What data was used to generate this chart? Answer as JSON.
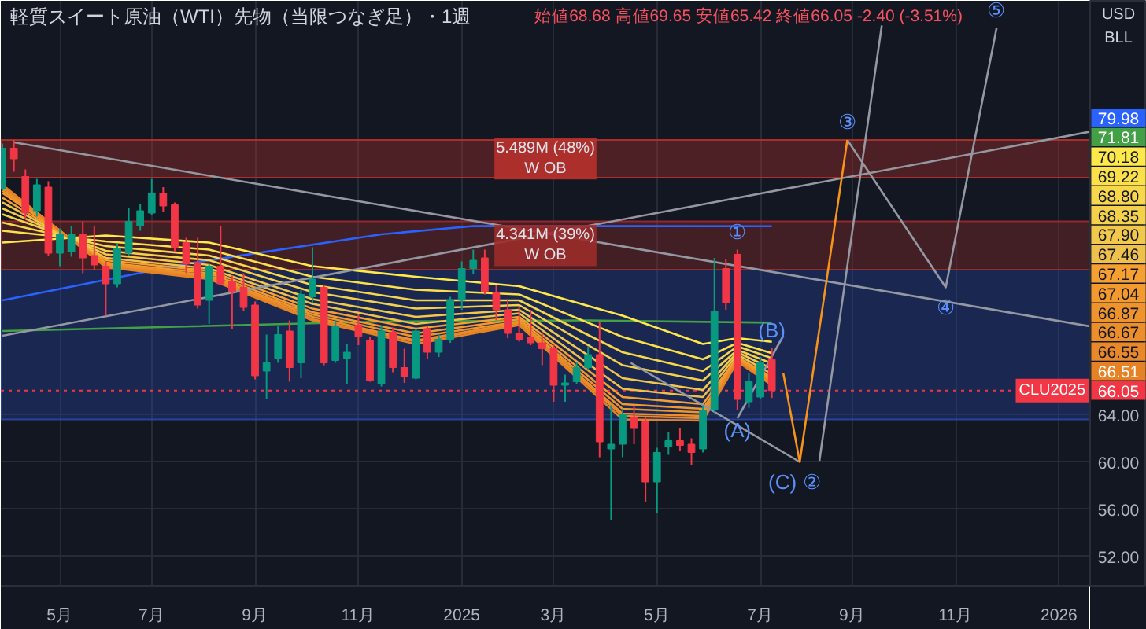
{
  "chart_data": {
    "type": "candlestick",
    "title": "軽質スイート原油（WTI）先物（当限つなぎ足）・1週",
    "subtitle": "始値68.68 高値69.65 安値65.42 終値66.05 -2.40 (-3.51%)",
    "x": [
      "2024-04-01",
      "2024-04-08",
      "2024-04-15",
      "2024-04-22",
      "2024-04-29",
      "2024-05-06",
      "2024-05-13",
      "2024-05-20",
      "2024-05-27",
      "2024-06-03",
      "2024-06-10",
      "2024-06-17",
      "2024-06-24",
      "2024-07-01",
      "2024-07-08",
      "2024-07-15",
      "2024-07-22",
      "2024-07-29",
      "2024-08-05",
      "2024-08-12",
      "2024-08-19",
      "2024-08-26",
      "2024-09-02",
      "2024-09-09",
      "2024-09-16",
      "2024-09-23",
      "2024-09-30",
      "2024-10-07",
      "2024-10-14",
      "2024-10-21",
      "2024-10-28",
      "2024-11-04",
      "2024-11-11",
      "2024-11-18",
      "2024-11-25",
      "2024-12-02",
      "2024-12-09",
      "2024-12-16",
      "2024-12-23",
      "2024-12-30",
      "2025-01-06",
      "2025-01-13",
      "2025-01-20",
      "2025-01-27",
      "2025-02-03",
      "2025-02-10",
      "2025-02-17",
      "2025-02-24",
      "2025-03-03",
      "2025-03-10",
      "2025-03-17",
      "2025-03-24",
      "2025-03-31",
      "2025-04-07",
      "2025-04-14",
      "2025-04-21",
      "2025-04-28",
      "2025-05-05",
      "2025-05-12",
      "2025-05-19",
      "2025-05-26",
      "2025-06-02",
      "2025-06-09",
      "2025-06-16",
      "2025-06-23",
      "2025-06-30",
      "2025-07-07",
      "2025-07-14"
    ],
    "ohlc": [
      [
        83.2,
        87.0,
        83.0,
        86.6
      ],
      [
        86.6,
        87.3,
        84.6,
        85.7
      ],
      [
        84.2,
        84.8,
        80.6,
        81.1
      ],
      [
        81.3,
        84.0,
        80.8,
        83.5
      ],
      [
        83.3,
        83.8,
        77.5,
        77.7
      ],
      [
        77.7,
        79.8,
        76.6,
        79.3
      ],
      [
        77.8,
        80.0,
        77.4,
        79.3
      ],
      [
        79.3,
        80.4,
        76.0,
        77.3
      ],
      [
        77.5,
        80.0,
        76.3,
        76.7
      ],
      [
        76.6,
        77.0,
        72.4,
        75.1
      ],
      [
        75.1,
        78.5,
        74.8,
        78.1
      ],
      [
        77.7,
        81.5,
        77.5,
        80.4
      ],
      [
        80.0,
        81.9,
        79.6,
        81.3
      ],
      [
        81.1,
        84.0,
        80.9,
        82.8
      ],
      [
        82.8,
        83.3,
        81.2,
        81.7
      ],
      [
        81.8,
        82.0,
        77.8,
        78.2
      ],
      [
        78.6,
        79.0,
        76.0,
        76.8
      ],
      [
        76.9,
        79.0,
        73.0,
        73.3
      ],
      [
        73.7,
        76.8,
        71.7,
        76.6
      ],
      [
        76.6,
        80.0,
        75.0,
        75.1
      ],
      [
        75.3,
        75.8,
        71.3,
        74.4
      ],
      [
        74.8,
        76.0,
        72.8,
        73.1
      ],
      [
        73.3,
        73.6,
        67.0,
        67.3
      ],
      [
        67.7,
        70.8,
        65.3,
        68.4
      ],
      [
        68.8,
        71.5,
        68.4,
        70.8
      ],
      [
        71.1,
        72.0,
        66.8,
        68.0
      ],
      [
        68.4,
        74.6,
        67.1,
        74.2
      ],
      [
        74.0,
        78.2,
        73.5,
        75.5
      ],
      [
        74.8,
        75.0,
        68.2,
        68.4
      ],
      [
        68.6,
        72.0,
        68.4,
        71.5
      ],
      [
        68.8,
        70.0,
        66.6,
        69.3
      ],
      [
        71.6,
        72.5,
        69.9,
        70.6
      ],
      [
        70.3,
        70.6,
        66.8,
        66.9
      ],
      [
        66.6,
        71.5,
        66.4,
        71.1
      ],
      [
        71.0,
        71.4,
        67.6,
        68.0
      ],
      [
        68.0,
        69.6,
        66.7,
        67.2
      ],
      [
        67.1,
        71.3,
        67.0,
        71.1
      ],
      [
        71.3,
        71.6,
        68.7,
        69.3
      ],
      [
        69.3,
        70.8,
        68.9,
        70.4
      ],
      [
        70.4,
        74.0,
        70.1,
        73.7
      ],
      [
        73.7,
        77.0,
        72.9,
        76.4
      ],
      [
        76.4,
        78.0,
        75.9,
        77.1
      ],
      [
        77.3,
        78.0,
        74.2,
        74.4
      ],
      [
        74.4,
        75.0,
        72.0,
        72.9
      ],
      [
        72.9,
        73.8,
        70.5,
        70.9
      ],
      [
        70.9,
        73.2,
        70.2,
        70.4
      ],
      [
        70.6,
        72.9,
        69.9,
        70.1
      ],
      [
        70.1,
        71.0,
        68.2,
        69.6
      ],
      [
        69.6,
        70.0,
        65.1,
        66.5
      ],
      [
        66.5,
        67.4,
        65.1,
        66.7
      ],
      [
        66.8,
        68.5,
        66.6,
        68.0
      ],
      [
        68.0,
        69.8,
        67.8,
        69.1
      ],
      [
        69.1,
        71.9,
        60.4,
        61.7
      ],
      [
        61.1,
        64.8,
        55.1,
        61.5
      ],
      [
        61.5,
        64.5,
        60.4,
        64.0
      ],
      [
        63.8,
        64.8,
        61.5,
        62.9
      ],
      [
        63.4,
        63.8,
        56.6,
        58.3
      ],
      [
        58.3,
        61.2,
        55.7,
        60.8
      ],
      [
        61.3,
        62.5,
        60.6,
        61.8
      ],
      [
        61.8,
        62.9,
        60.9,
        61.4
      ],
      [
        61.5,
        62.0,
        59.7,
        60.8
      ],
      [
        61.1,
        64.8,
        60.8,
        64.4
      ],
      [
        64.4,
        77.3,
        64.2,
        72.8
      ],
      [
        76.4,
        77.2,
        72.9,
        73.5
      ],
      [
        77.6,
        78.0,
        64.4,
        65.3
      ],
      [
        65.1,
        67.5,
        64.6,
        66.8
      ],
      [
        65.5,
        68.9,
        65.3,
        68.45
      ],
      [
        68.68,
        69.65,
        65.42,
        66.05
      ]
    ],
    "colors": [
      "#089981",
      "#f23645",
      "#f23645",
      "#089981",
      "#f23645",
      "#089981",
      "#089981",
      "#f23645",
      "#f23645",
      "#f23645",
      "#089981",
      "#089981",
      "#089981",
      "#089981",
      "#f23645",
      "#f23645",
      "#f23645",
      "#f23645",
      "#089981",
      "#f23645",
      "#f23645",
      "#f23645",
      "#f23645",
      "#089981",
      "#089981",
      "#f23645",
      "#089981",
      "#089981",
      "#f23645",
      "#089981",
      "#089981",
      "#f23645",
      "#f23645",
      "#089981",
      "#f23645",
      "#f23645",
      "#089981",
      "#f23645",
      "#089981",
      "#089981",
      "#089981",
      "#089981",
      "#f23645",
      "#f23645",
      "#f23645",
      "#f23645",
      "#f23645",
      "#f23645",
      "#f23645",
      "#089981",
      "#089981",
      "#089981",
      "#f23645",
      "#089981",
      "#089981",
      "#f23645",
      "#f23645",
      "#089981",
      "#089981",
      "#f23645",
      "#f23645",
      "#089981",
      "#089981",
      "#f23645",
      "#f23645",
      "#089981",
      "#089981",
      "#f23645"
    ],
    "series": [
      {
        "type": "line",
        "x": [
          "2024-04-01",
          "2024-07-22",
          "2024-11-18",
          "2025-01-13",
          "2025-07-14"
        ],
        "values": [
          73.7,
          76.8,
          79.3,
          80.0,
          79.98
        ],
        "color": "#2962ff"
      },
      {
        "type": "line",
        "x": [
          "2024-04-01",
          "2024-11-18",
          "2025-03-24",
          "2025-07-14"
        ],
        "values": [
          71.1,
          71.9,
          72.0,
          71.81
        ],
        "color": "#43a047"
      },
      {
        "type": "line",
        "x": [
          "2024-04-01",
          "2024-06-03",
          "2024-08-05",
          "2024-10-07",
          "2024-12-09",
          "2025-02-10",
          "2025-04-14",
          "2025-06-02",
          "2025-06-23",
          "2025-07-14"
        ],
        "values": [
          78.6,
          79.2,
          78.6,
          76.6,
          75.7,
          74.9,
          72.4,
          70.0,
          70.5,
          70.18
        ],
        "color": "#ffe94a"
      },
      {
        "type": "line",
        "x": [
          "2024-04-01",
          "2024-06-03",
          "2024-08-05",
          "2024-10-07",
          "2024-12-09",
          "2025-02-10",
          "2025-04-14",
          "2025-06-02",
          "2025-06-23",
          "2025-07-14"
        ],
        "values": [
          79.6,
          78.7,
          78.0,
          75.7,
          74.6,
          74.2,
          70.6,
          68.7,
          70.1,
          69.22
        ],
        "color": "#fbe04a"
      },
      {
        "type": "line",
        "x": [
          "2024-04-01",
          "2024-06-03",
          "2024-08-05",
          "2024-10-07",
          "2024-12-09",
          "2025-02-10",
          "2025-04-14",
          "2025-06-02",
          "2025-06-23",
          "2025-07-14"
        ],
        "values": [
          80.3,
          78.3,
          77.5,
          75.0,
          73.7,
          73.7,
          69.3,
          67.7,
          69.8,
          68.8
        ],
        "color": "#f8d84a"
      },
      {
        "type": "line",
        "x": [
          "2024-04-01",
          "2024-06-03",
          "2024-08-05",
          "2024-10-07",
          "2024-12-09",
          "2025-02-10",
          "2025-04-14",
          "2025-06-02",
          "2025-06-23",
          "2025-07-14"
        ],
        "values": [
          81.0,
          77.9,
          77.1,
          74.4,
          73.0,
          73.3,
          68.2,
          66.9,
          69.5,
          68.35
        ],
        "color": "#f5d04a"
      },
      {
        "type": "line",
        "x": [
          "2024-04-01",
          "2024-06-03",
          "2024-08-05",
          "2024-10-07",
          "2024-12-09",
          "2025-02-10",
          "2025-04-14",
          "2025-06-02",
          "2025-06-23",
          "2025-07-14"
        ],
        "values": [
          81.5,
          77.6,
          76.7,
          73.8,
          72.3,
          72.9,
          67.1,
          66.1,
          69.3,
          67.9
        ],
        "color": "#f2c84a"
      },
      {
        "type": "line",
        "x": [
          "2024-04-01",
          "2024-06-03",
          "2024-08-05",
          "2024-10-07",
          "2024-12-09",
          "2025-02-10",
          "2025-04-14",
          "2025-06-02",
          "2025-06-23",
          "2025-07-14"
        ],
        "values": [
          82.0,
          77.3,
          76.4,
          73.4,
          71.7,
          72.6,
          66.2,
          65.5,
          69.1,
          67.46
        ],
        "color": "#efc04a"
      },
      {
        "type": "line",
        "x": [
          "2024-04-01",
          "2024-06-03",
          "2024-08-05",
          "2024-10-07",
          "2024-12-09",
          "2025-02-10",
          "2025-04-14",
          "2025-06-02",
          "2025-06-23",
          "2025-07-14"
        ],
        "values": [
          82.4,
          77.1,
          76.2,
          73.0,
          71.3,
          72.3,
          65.5,
          64.9,
          68.9,
          67.17
        ],
        "color": "#f5a030"
      },
      {
        "type": "line",
        "x": [
          "2024-04-01",
          "2024-06-03",
          "2024-08-05",
          "2024-10-07",
          "2024-12-09",
          "2025-02-10",
          "2025-04-14",
          "2025-06-02",
          "2025-06-23",
          "2025-07-14"
        ],
        "values": [
          82.8,
          76.9,
          76.0,
          72.7,
          70.9,
          72.1,
          64.9,
          64.5,
          68.8,
          67.04
        ],
        "color": "#f29a2e"
      },
      {
        "type": "line",
        "x": [
          "2024-04-01",
          "2024-06-03",
          "2024-08-05",
          "2024-10-07",
          "2024-12-09",
          "2025-02-10",
          "2025-04-14",
          "2025-06-02",
          "2025-06-23",
          "2025-07-14"
        ],
        "values": [
          83.0,
          76.8,
          75.8,
          72.5,
          70.6,
          71.9,
          64.5,
          64.2,
          68.7,
          66.87
        ],
        "color": "#ef942c"
      },
      {
        "type": "line",
        "x": [
          "2024-04-01",
          "2024-06-03",
          "2024-08-05",
          "2024-10-07",
          "2024-12-09",
          "2025-02-10",
          "2025-04-14",
          "2025-06-02",
          "2025-06-23",
          "2025-07-14"
        ],
        "values": [
          83.2,
          76.7,
          75.7,
          72.3,
          70.3,
          71.8,
          64.1,
          63.9,
          68.6,
          66.67
        ],
        "color": "#ec8e2a"
      },
      {
        "type": "line",
        "x": [
          "2024-04-01",
          "2024-06-03",
          "2024-08-05",
          "2024-10-07",
          "2024-12-09",
          "2025-02-10",
          "2025-04-14",
          "2025-06-02",
          "2025-06-23",
          "2025-07-14"
        ],
        "values": [
          83.4,
          76.6,
          75.6,
          72.1,
          70.2,
          71.7,
          63.9,
          63.7,
          68.6,
          66.55
        ],
        "color": "#e98828"
      },
      {
        "type": "line",
        "x": [
          "2024-04-01",
          "2024-06-03",
          "2024-08-05",
          "2024-10-07",
          "2024-12-09",
          "2025-02-10",
          "2025-04-14",
          "2025-06-02",
          "2025-06-23",
          "2025-07-14"
        ],
        "values": [
          83.5,
          76.5,
          75.5,
          72.0,
          70.0,
          71.6,
          63.6,
          63.5,
          68.5,
          66.51
        ],
        "color": "#e68226"
      },
      {
        "type": "line",
        "x": [
          "2024-04-08",
          "2026-01-24"
        ],
        "values": [
          87.1,
          71.5
        ],
        "color": "#9598a1"
      },
      {
        "type": "line",
        "x": [
          "2024-04-01",
          "2026-01-24"
        ],
        "values": [
          70.7,
          88.0
        ],
        "color": "#9598a1"
      },
      {
        "type": "line",
        "x": [
          "2025-04-19",
          "2025-07-31"
        ],
        "values": [
          68.4,
          60.0
        ],
        "color": "#9598a1"
      },
      {
        "type": "line",
        "x": [
          "2025-06-23",
          "2025-07-21"
        ],
        "values": [
          63.7,
          70.7
        ],
        "color": "#9598a1"
      },
      {
        "type": "line",
        "x": [
          "2025-08-12",
          "2025-09-19"
        ],
        "values": [
          60.1,
          97.0
        ],
        "color": "#9598a1"
      },
      {
        "type": "line",
        "x": [
          "2025-08-29",
          "2025-10-28",
          "2025-11-28"
        ],
        "values": [
          87.3,
          74.8,
          96.8
        ],
        "color": "#9598a1"
      },
      {
        "type": "line",
        "x": [
          "2025-07-21",
          "2025-07-31",
          "2025-08-29"
        ],
        "values": [
          67.5,
          60.0,
          87.3
        ],
        "color": "#f7931a"
      }
    ],
    "bands": [
      {
        "axis": "y",
        "from": 63.6,
        "to": 76.3,
        "color": "#2848a8"
      },
      {
        "axis": "y",
        "from": 84.1,
        "to": 87.3,
        "label": "5.489M (48%)\nW OB",
        "color": "#b7312c"
      },
      {
        "axis": "y",
        "from": 76.3,
        "to": 80.4,
        "label": "4.341M (39%)\nW OB",
        "color": "#9c2b2b"
      }
    ],
    "ref_lines": [
      {
        "axis": "y",
        "value": 66.05,
        "label": "CLU2025",
        "color": "#f23645",
        "line_style": "dotted"
      }
    ],
    "annotations": [
      {
        "text": "①",
        "x": "2025-06-23",
        "y": 78.0
      },
      {
        "text": "(A)",
        "x": "2025-06-23",
        "y": 64.4
      },
      {
        "text": "(B)",
        "x": "2025-07-14",
        "y": 69.65
      },
      {
        "text": "(C)",
        "x": "2025-07-31",
        "y": 60.0
      },
      {
        "text": "②",
        "x": "2025-07-31",
        "y": 60.0
      },
      {
        "text": "③",
        "x": "2025-08-29",
        "y": 87.3
      },
      {
        "text": "④",
        "x": "2025-10-28",
        "y": 74.8
      },
      {
        "text": "⑤",
        "x": "2025-11-28",
        "y": 96.8
      },
      "USD",
      "BLL",
      "79.98",
      "71.81",
      "70.18",
      "69.22",
      "68.80",
      "68.35",
      "67.90",
      "67.46",
      "67.17",
      "67.04",
      "66.87",
      "66.67",
      "66.55",
      "66.51",
      "66.05"
    ],
    "xlim": [
      "2024-03-31",
      "2026-01-24"
    ],
    "xticks": [
      {
        "value": "2024-05-06",
        "label": "5月"
      },
      {
        "value": "2024-07-01",
        "label": "7月"
      },
      {
        "value": "2024-09-02",
        "label": "9月"
      },
      {
        "value": "2024-11-04",
        "label": "11月"
      },
      {
        "value": "2025-01-06",
        "label": "2025"
      },
      {
        "value": "2025-03-03",
        "label": "3月"
      },
      {
        "value": "2025-05-05",
        "label": "5月"
      },
      {
        "value": "2025-07-07",
        "label": "7月"
      },
      {
        "value": "2025-09-01",
        "label": "9月"
      },
      {
        "value": "2025-11-03",
        "label": "11月"
      },
      {
        "value": "2026-01-05",
        "label": "2026"
      }
    ],
    "ylim": [
      49.5,
      99.1
    ],
    "yticks": [
      {
        "value": 52,
        "label": "52.00"
      },
      {
        "value": 56,
        "label": "56.00"
      },
      {
        "value": 60,
        "label": "60.00"
      },
      {
        "value": 64,
        "label": "64.00"
      }
    ],
    "grid": true
  }
}
